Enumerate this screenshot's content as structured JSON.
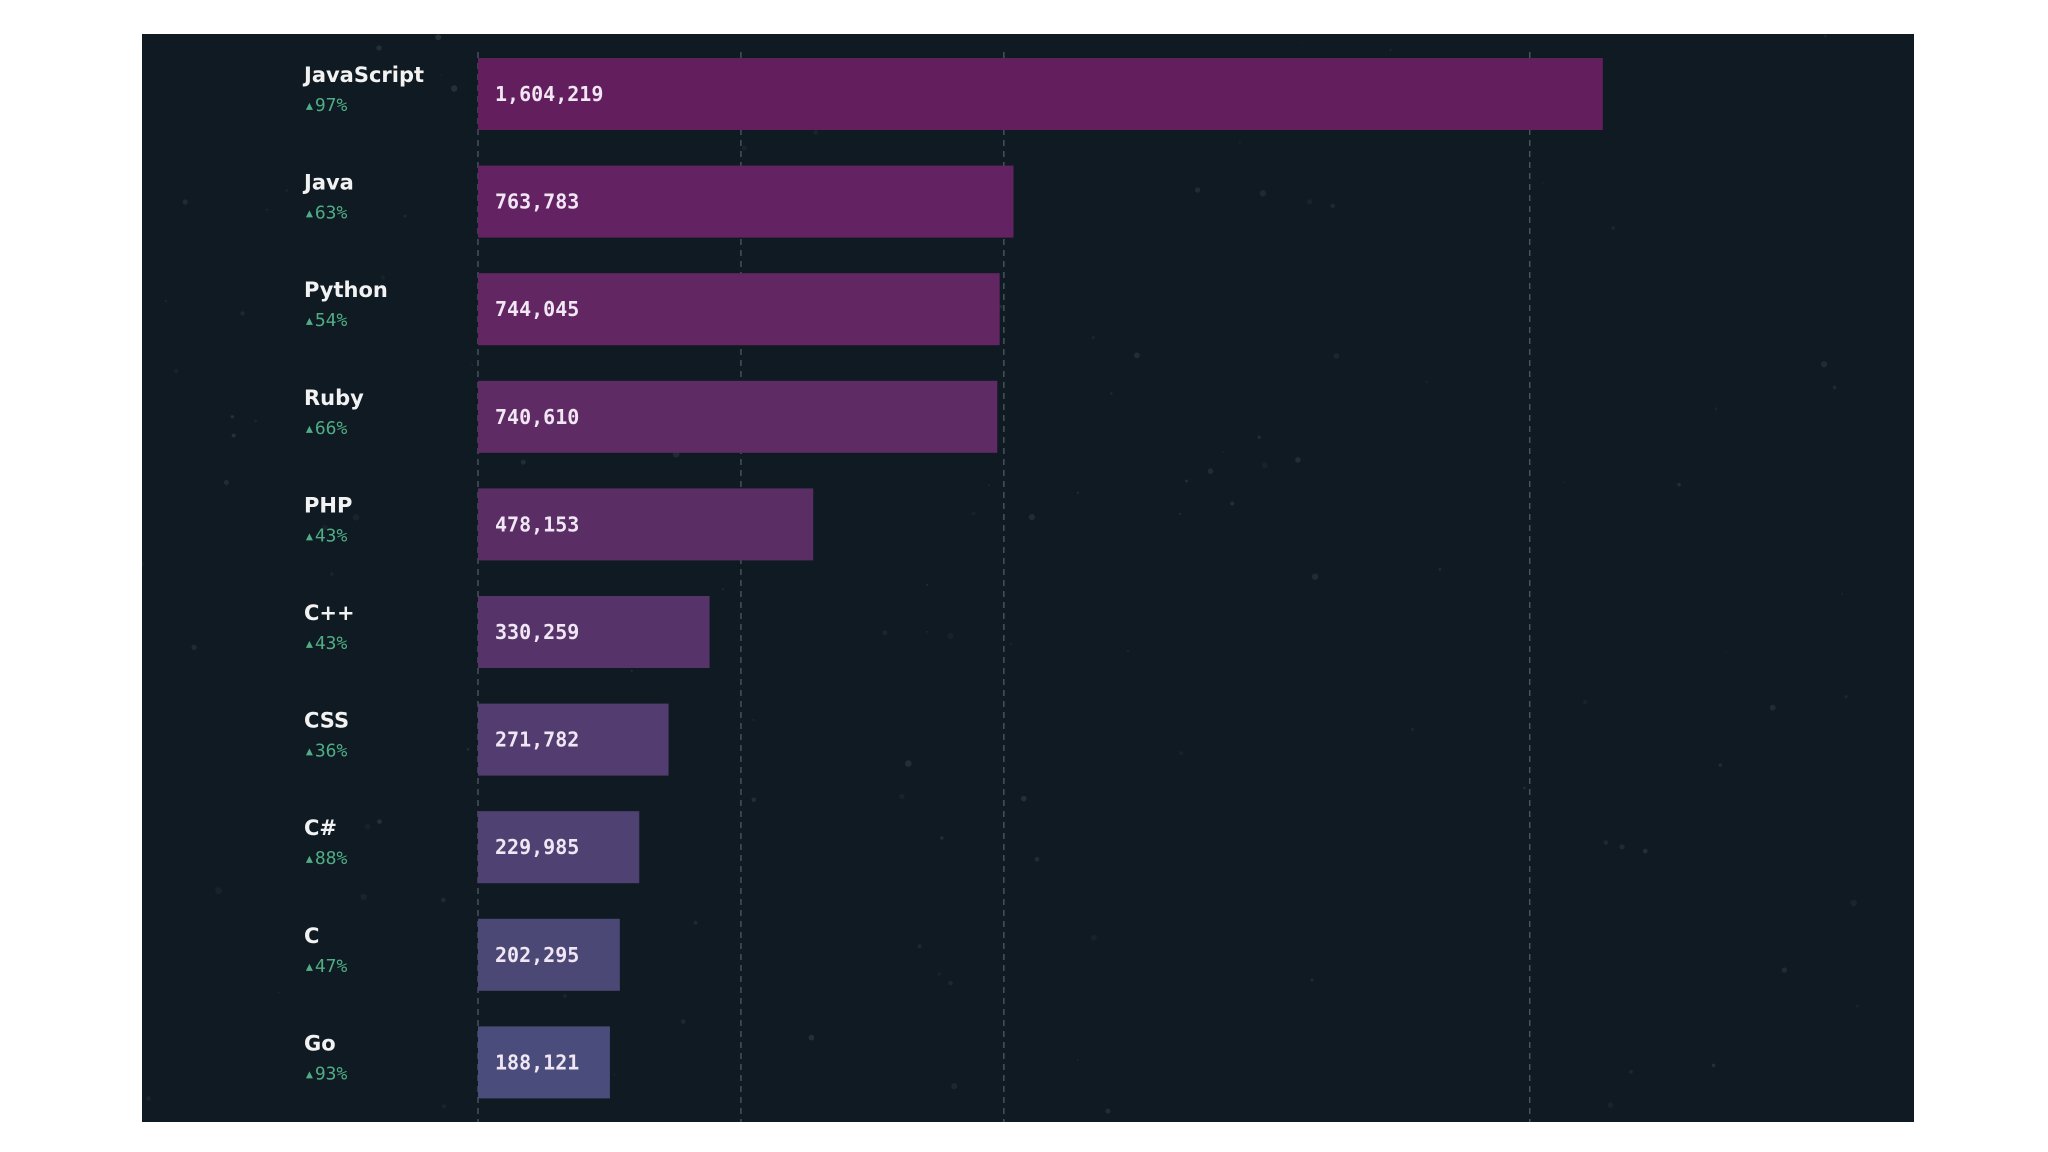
{
  "chart_data": {
    "type": "bar",
    "orientation": "horizontal",
    "categories": [
      "JavaScript",
      "Java",
      "Python",
      "Ruby",
      "PHP",
      "C++",
      "CSS",
      "C#",
      "C",
      "Go"
    ],
    "values": [
      1604219,
      763783,
      744045,
      740610,
      478153,
      330259,
      271782,
      229985,
      202295,
      188121
    ],
    "value_labels": [
      "1,604,219",
      "763,783",
      "744,045",
      "740,610",
      "478,153",
      "330,259",
      "271,782",
      "229,985",
      "202,295",
      "188,121"
    ],
    "growth_labels": [
      "▴97%",
      "▴63%",
      "▴54%",
      "▴66%",
      "▴43%",
      "▴43%",
      "▴36%",
      "▴88%",
      "▴47%",
      "▴93%"
    ],
    "gridlines": [
      0,
      375000,
      750000,
      1500000
    ],
    "xlim": [
      0,
      1750000
    ],
    "grid": true,
    "title": "",
    "xlabel": "",
    "ylabel": ""
  },
  "colors": {
    "background": "#0f1a22",
    "page": "#ffffff",
    "gridline": "#4a5560",
    "label": "#f2f2f2",
    "growth": "#4fae85",
    "bar_value_text": "#f0e6f4",
    "bars": [
      "#631f5d",
      "#632262",
      "#622762",
      "#5e2b64",
      "#5a2d64",
      "#56346a",
      "#533c70",
      "#4f4273",
      "#4c4876",
      "#4a4d7c"
    ]
  }
}
